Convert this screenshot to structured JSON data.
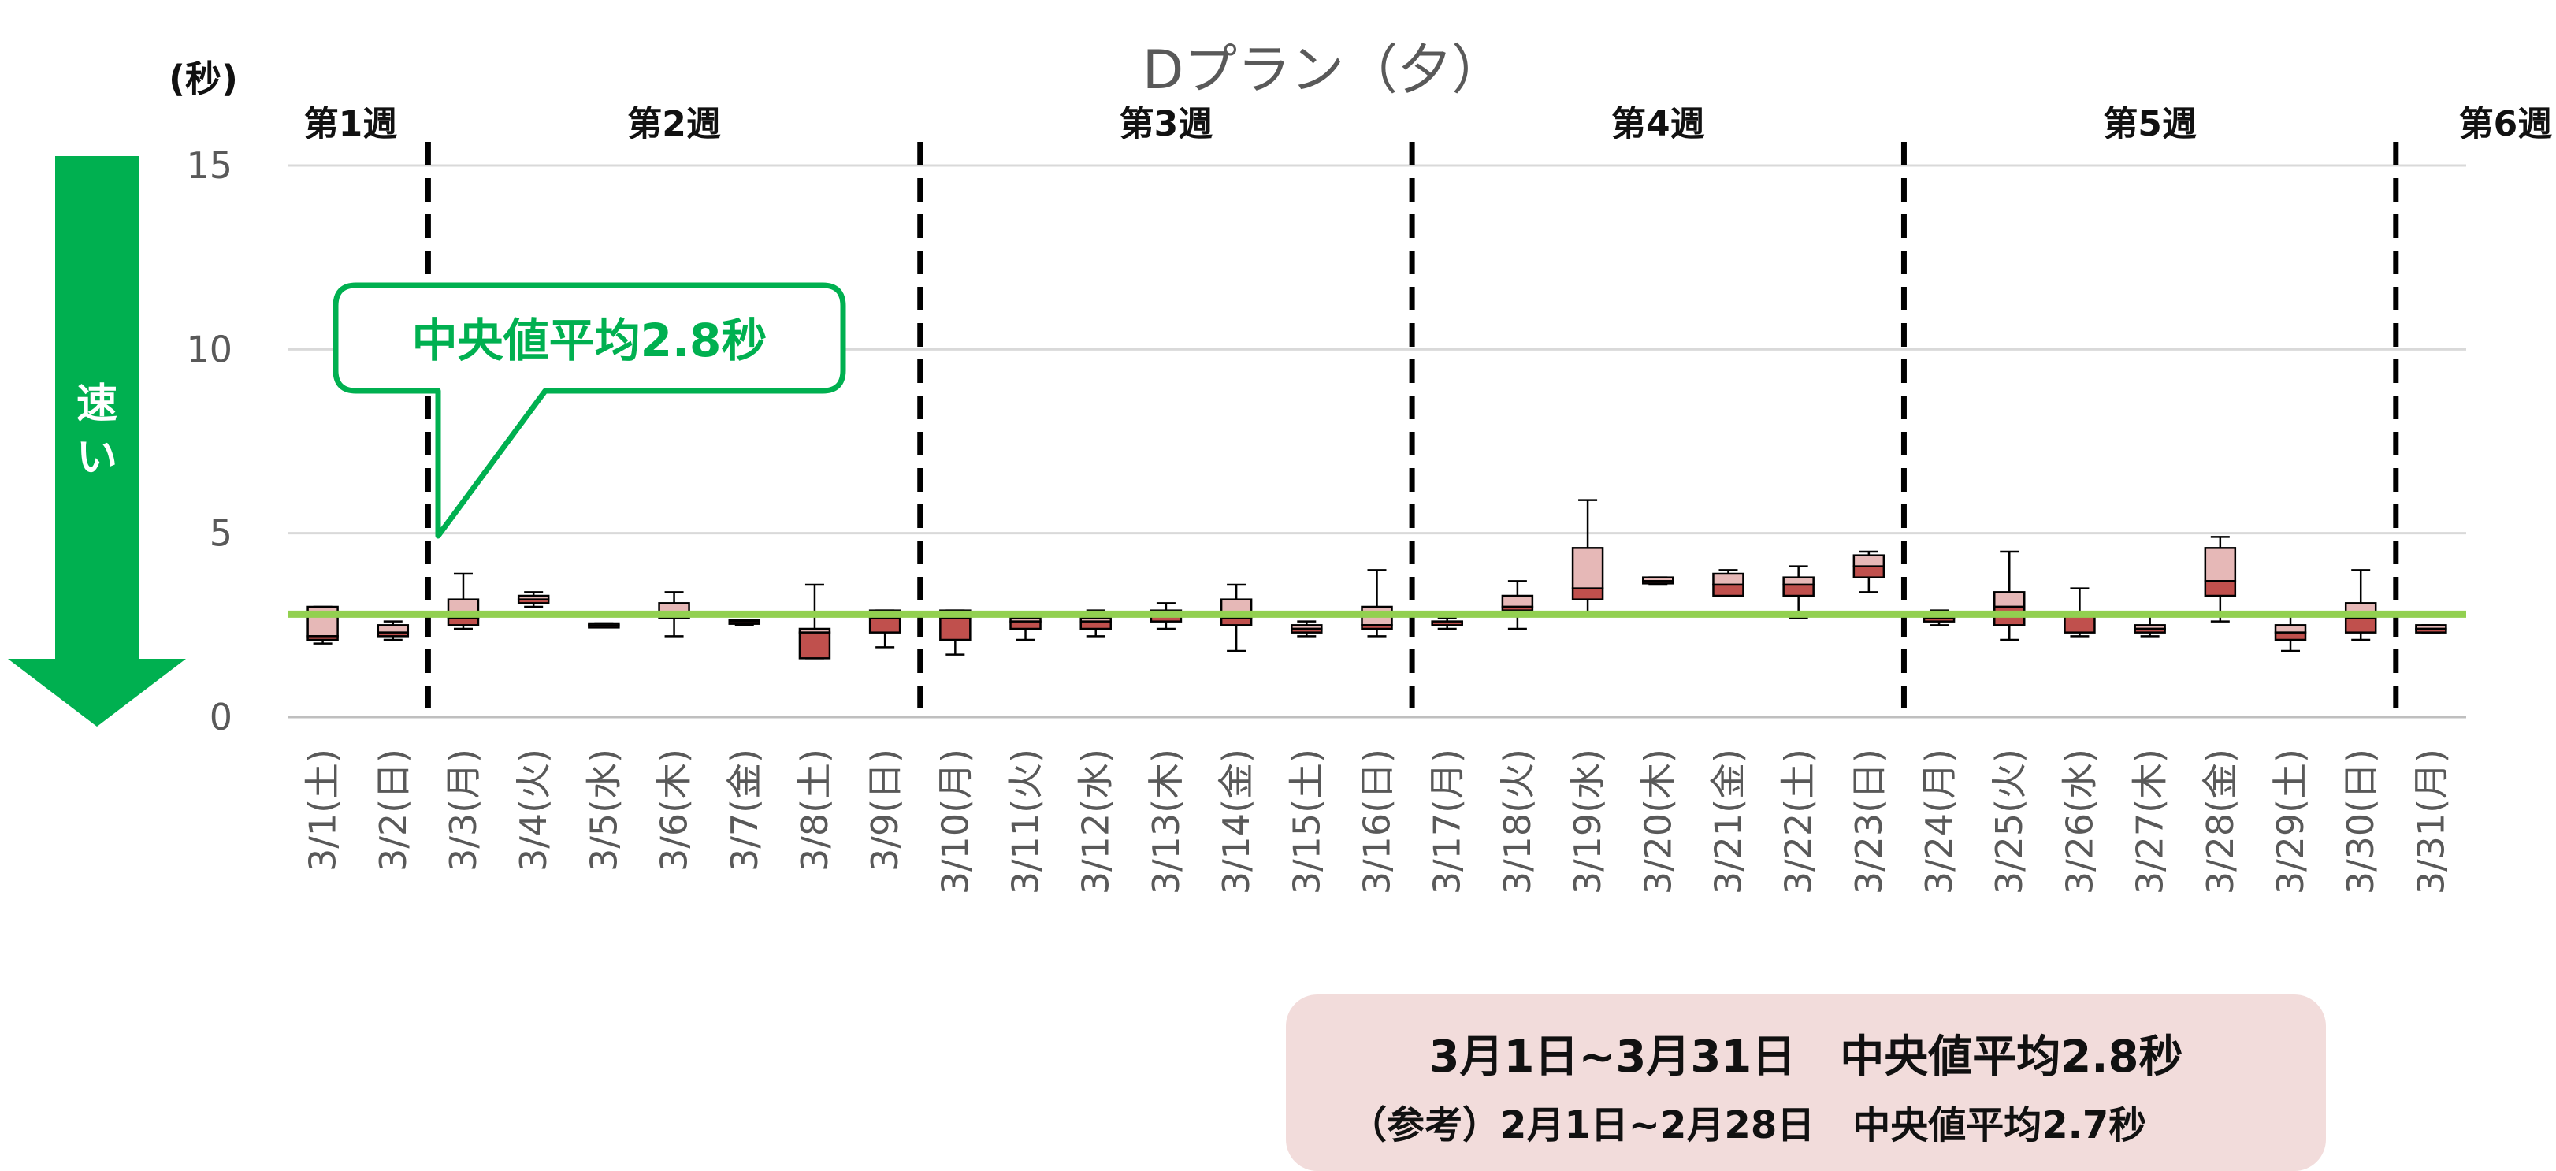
{
  "chart_data": {
    "type": "boxplot",
    "title": "Dプラン（夕）",
    "y_unit_label": "(秒)",
    "ylim": [
      0,
      15
    ],
    "yticks": [
      0,
      5,
      10,
      15
    ],
    "grid": true,
    "median_average_line": {
      "value": 2.8,
      "color": "#92d050"
    },
    "categories": [
      "3/1(土)",
      "3/2(日)",
      "3/3(月)",
      "3/4(火)",
      "3/5(水)",
      "3/6(木)",
      "3/7(金)",
      "3/8(土)",
      "3/9(日)",
      "3/10(月)",
      "3/11(火)",
      "3/12(水)",
      "3/13(木)",
      "3/14(金)",
      "3/15(土)",
      "3/16(日)",
      "3/17(月)",
      "3/18(火)",
      "3/19(水)",
      "3/20(木)",
      "3/21(金)",
      "3/22(土)",
      "3/23(日)",
      "3/24(月)",
      "3/25(火)",
      "3/26(水)",
      "3/27(木)",
      "3/28(金)",
      "3/29(土)",
      "3/30(日)",
      "3/31(月)"
    ],
    "boxes": [
      {
        "min": 2.0,
        "q1": 2.1,
        "median": 2.2,
        "q3": 3.0,
        "max": 3.0
      },
      {
        "min": 2.1,
        "q1": 2.2,
        "median": 2.3,
        "q3": 2.5,
        "max": 2.6
      },
      {
        "min": 2.4,
        "q1": 2.5,
        "median": 2.7,
        "q3": 3.2,
        "max": 3.9
      },
      {
        "min": 3.0,
        "q1": 3.1,
        "median": 3.2,
        "q3": 3.3,
        "max": 3.4
      },
      {
        "min": 2.5,
        "q1": 2.5,
        "median": 2.5,
        "q3": 2.55,
        "max": 2.55
      },
      {
        "min": 2.2,
        "q1": 2.7,
        "median": 2.8,
        "q3": 3.1,
        "max": 3.4
      },
      {
        "min": 2.5,
        "q1": 2.55,
        "median": 2.6,
        "q3": 2.65,
        "max": 2.65
      },
      {
        "min": 1.6,
        "q1": 1.6,
        "median": 2.3,
        "q3": 2.4,
        "max": 3.6
      },
      {
        "min": 1.9,
        "q1": 2.3,
        "median": 2.7,
        "q3": 2.9,
        "max": 2.9
      },
      {
        "min": 1.7,
        "q1": 2.1,
        "median": 2.7,
        "q3": 2.9,
        "max": 2.9
      },
      {
        "min": 2.1,
        "q1": 2.4,
        "median": 2.6,
        "q3": 2.7,
        "max": 2.8
      },
      {
        "min": 2.2,
        "q1": 2.4,
        "median": 2.6,
        "q3": 2.7,
        "max": 2.9
      },
      {
        "min": 2.4,
        "q1": 2.6,
        "median": 2.8,
        "q3": 2.9,
        "max": 3.1
      },
      {
        "min": 1.8,
        "q1": 2.5,
        "median": 2.7,
        "q3": 3.2,
        "max": 3.6
      },
      {
        "min": 2.2,
        "q1": 2.3,
        "median": 2.4,
        "q3": 2.5,
        "max": 2.6
      },
      {
        "min": 2.2,
        "q1": 2.4,
        "median": 2.5,
        "q3": 3.0,
        "max": 4.0
      },
      {
        "min": 2.4,
        "q1": 2.5,
        "median": 2.6,
        "q3": 2.6,
        "max": 2.7
      },
      {
        "min": 2.4,
        "q1": 2.9,
        "median": 3.0,
        "q3": 3.3,
        "max": 3.7
      },
      {
        "min": 2.8,
        "q1": 3.2,
        "median": 3.5,
        "q3": 4.6,
        "max": 5.9
      },
      {
        "min": 3.6,
        "q1": 3.65,
        "median": 3.7,
        "q3": 3.8,
        "max": 3.8
      },
      {
        "min": 3.3,
        "q1": 3.3,
        "median": 3.6,
        "q3": 3.9,
        "max": 4.0
      },
      {
        "min": 2.7,
        "q1": 3.3,
        "median": 3.6,
        "q3": 3.8,
        "max": 4.1
      },
      {
        "min": 3.4,
        "q1": 3.8,
        "median": 4.1,
        "q3": 4.4,
        "max": 4.5
      },
      {
        "min": 2.5,
        "q1": 2.6,
        "median": 2.7,
        "q3": 2.8,
        "max": 2.9
      },
      {
        "min": 2.1,
        "q1": 2.5,
        "median": 3.0,
        "q3": 3.4,
        "max": 4.5
      },
      {
        "min": 2.2,
        "q1": 2.3,
        "median": 2.8,
        "q3": 2.8,
        "max": 3.5
      },
      {
        "min": 2.2,
        "q1": 2.3,
        "median": 2.4,
        "q3": 2.5,
        "max": 2.8
      },
      {
        "min": 2.6,
        "q1": 3.3,
        "median": 3.7,
        "q3": 4.6,
        "max": 4.9
      },
      {
        "min": 1.8,
        "q1": 2.1,
        "median": 2.3,
        "q3": 2.5,
        "max": 2.8
      },
      {
        "min": 2.1,
        "q1": 2.3,
        "median": 2.7,
        "q3": 3.1,
        "max": 4.0
      },
      {
        "min": 2.3,
        "q1": 2.3,
        "median": 2.4,
        "q3": 2.5,
        "max": 2.5
      }
    ],
    "colors": {
      "upper_box": "#e6b8b7",
      "lower_box": "#c0504d",
      "box_edge": "#000000"
    },
    "week_labels": [
      {
        "label": "第1週",
        "from": 0,
        "to": 1
      },
      {
        "label": "第2週",
        "from": 2,
        "to": 8
      },
      {
        "label": "第3週",
        "from": 9,
        "to": 15
      },
      {
        "label": "第4週",
        "from": 16,
        "to": 22
      },
      {
        "label": "第5週",
        "from": 23,
        "to": 29
      },
      {
        "label": "第6週",
        "from": 30,
        "to": 30
      }
    ],
    "week_dividers_after": [
      1,
      8,
      15,
      22,
      29
    ],
    "callout": {
      "text": "中央値平均2.8秒",
      "color": "#00b050"
    },
    "speed_arrow": {
      "text": "速い",
      "color": "#00b050"
    }
  },
  "summary": {
    "main": "3月1日~3月31日　中央値平均2.8秒",
    "reference": "（参考）2月1日~2月28日　中央値平均2.7秒"
  }
}
